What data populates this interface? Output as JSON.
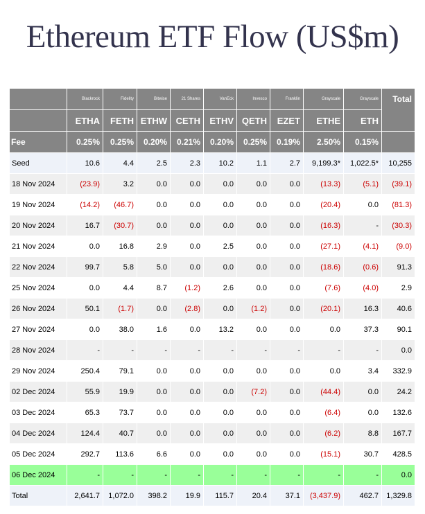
{
  "title": "Ethereum ETF Flow (US$m)",
  "colors": {
    "header_bg": "#858585",
    "negative": "#cc0000",
    "highlight_row": "#99ff99",
    "seed_total_bg": "#eef2f9"
  },
  "issuers": [
    "Blackrock",
    "Fidelity",
    "Bitwise",
    "21 Shares",
    "VanEck",
    "Invesco",
    "Franklin",
    "Grayscale",
    "Grayscale"
  ],
  "total_label": "Total",
  "tickers": [
    "ETHA",
    "FETH",
    "ETHW",
    "CETH",
    "ETHV",
    "QETH",
    "EZET",
    "ETHE",
    "ETH"
  ],
  "fee_label": "Fee",
  "fees": [
    "0.25%",
    "0.25%",
    "0.20%",
    "0.21%",
    "0.20%",
    "0.25%",
    "0.19%",
    "2.50%",
    "0.15%"
  ],
  "rows": [
    {
      "label": "Seed",
      "cells": [
        "10.6",
        "4.4",
        "2.5",
        "2.3",
        "10.2",
        "1.1",
        "2.7",
        "9,199.3*",
        "1,022.5*",
        "10,255"
      ]
    },
    {
      "label": "18 Nov 2024",
      "cells": [
        "(23.9)",
        "3.2",
        "0.0",
        "0.0",
        "0.0",
        "0.0",
        "0.0",
        "(13.3)",
        "(5.1)",
        "(39.1)"
      ]
    },
    {
      "label": "19 Nov 2024",
      "cells": [
        "(14.2)",
        "(46.7)",
        "0.0",
        "0.0",
        "0.0",
        "0.0",
        "0.0",
        "(20.4)",
        "0.0",
        "(81.3)"
      ]
    },
    {
      "label": "20 Nov 2024",
      "cells": [
        "16.7",
        "(30.7)",
        "0.0",
        "0.0",
        "0.0",
        "0.0",
        "0.0",
        "(16.3)",
        "-",
        "(30.3)"
      ]
    },
    {
      "label": "21 Nov 2024",
      "cells": [
        "0.0",
        "16.8",
        "2.9",
        "0.0",
        "2.5",
        "0.0",
        "0.0",
        "(27.1)",
        "(4.1)",
        "(9.0)"
      ]
    },
    {
      "label": "22 Nov 2024",
      "cells": [
        "99.7",
        "5.8",
        "5.0",
        "0.0",
        "0.0",
        "0.0",
        "0.0",
        "(18.6)",
        "(0.6)",
        "91.3"
      ]
    },
    {
      "label": "25 Nov 2024",
      "cells": [
        "0.0",
        "4.4",
        "8.7",
        "(1.2)",
        "2.6",
        "0.0",
        "0.0",
        "(7.6)",
        "(4.0)",
        "2.9"
      ]
    },
    {
      "label": "26 Nov 2024",
      "cells": [
        "50.1",
        "(1.7)",
        "0.0",
        "(2.8)",
        "0.0",
        "(1.2)",
        "0.0",
        "(20.1)",
        "16.3",
        "40.6"
      ]
    },
    {
      "label": "27 Nov 2024",
      "cells": [
        "0.0",
        "38.0",
        "1.6",
        "0.0",
        "13.2",
        "0.0",
        "0.0",
        "0.0",
        "37.3",
        "90.1"
      ]
    },
    {
      "label": "28 Nov 2024",
      "cells": [
        "-",
        "-",
        "-",
        "-",
        "-",
        "-",
        "-",
        "-",
        "-",
        "0.0"
      ]
    },
    {
      "label": "29 Nov 2024",
      "cells": [
        "250.4",
        "79.1",
        "0.0",
        "0.0",
        "0.0",
        "0.0",
        "0.0",
        "0.0",
        "3.4",
        "332.9"
      ]
    },
    {
      "label": "02 Dec 2024",
      "cells": [
        "55.9",
        "19.9",
        "0.0",
        "0.0",
        "0.0",
        "(7.2)",
        "0.0",
        "(44.4)",
        "0.0",
        "24.2"
      ]
    },
    {
      "label": "03 Dec 2024",
      "cells": [
        "65.3",
        "73.7",
        "0.0",
        "0.0",
        "0.0",
        "0.0",
        "0.0",
        "(6.4)",
        "0.0",
        "132.6"
      ]
    },
    {
      "label": "04 Dec 2024",
      "cells": [
        "124.4",
        "40.7",
        "0.0",
        "0.0",
        "0.0",
        "0.0",
        "0.0",
        "(6.2)",
        "8.8",
        "167.7"
      ]
    },
    {
      "label": "05 Dec 2024",
      "cells": [
        "292.7",
        "113.6",
        "6.6",
        "0.0",
        "0.0",
        "0.0",
        "0.0",
        "(15.1)",
        "30.7",
        "428.5"
      ]
    },
    {
      "label": "06 Dec 2024",
      "cells": [
        "-",
        "-",
        "-",
        "-",
        "-",
        "-",
        "-",
        "-",
        "-",
        "0.0"
      ],
      "highlight": true
    },
    {
      "label": "Total",
      "cells": [
        "2,641.7",
        "1,072.0",
        "398.2",
        "19.9",
        "115.7",
        "20.4",
        "37.1",
        "(3,437.9)",
        "462.7",
        "1,329.8"
      ]
    }
  ]
}
